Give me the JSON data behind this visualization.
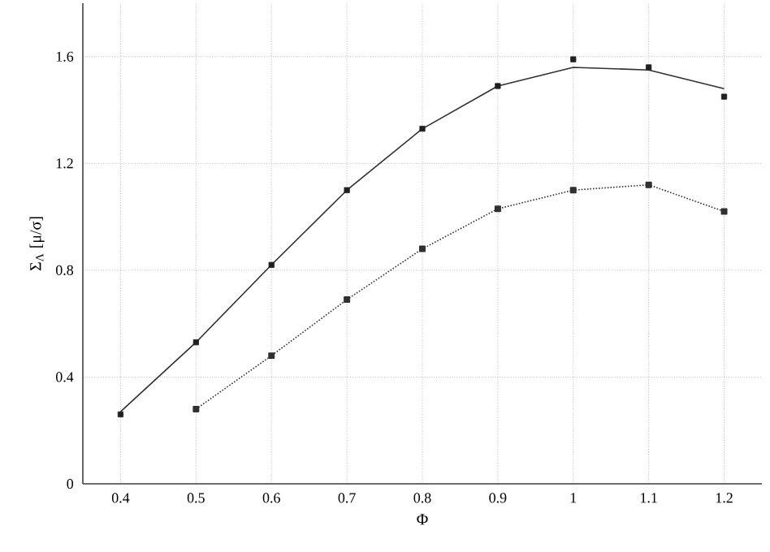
{
  "chart_data": {
    "type": "line",
    "xlabel": "Φ",
    "ylabel": "Σ$_{Λ}$ [μ/σ]",
    "x": [
      0.4,
      0.5,
      0.6,
      0.7,
      0.8,
      0.9,
      1.0,
      1.1,
      1.2
    ],
    "series": [
      {
        "color": "#303030",
        "line_style": "solid",
        "marker": "none",
        "values": [
          0.27,
          0.53,
          0.82,
          1.1,
          1.33,
          1.49,
          1.56,
          1.55,
          1.48
        ]
      },
      {
        "type": "scatter",
        "color": "#202020",
        "marker": "square",
        "values": [
          0.26,
          0.53,
          0.82,
          1.1,
          1.33,
          1.49,
          1.59,
          1.56,
          1.45
        ]
      },
      {
        "color": "#303030",
        "line_style": "dotted",
        "marker": "square",
        "values": [
          null,
          0.28,
          0.48,
          0.69,
          0.88,
          1.03,
          1.1,
          1.12,
          1.02
        ]
      }
    ],
    "xlim": [
      0.35,
      1.25
    ],
    "ylim": [
      0,
      1.8
    ],
    "xticks": [
      0.4,
      0.5,
      0.6,
      0.7,
      0.8,
      0.9,
      1,
      1.1,
      1.2
    ],
    "yticks": [
      0,
      0.4,
      0.8,
      1.2,
      1.6
    ],
    "grid": true
  }
}
